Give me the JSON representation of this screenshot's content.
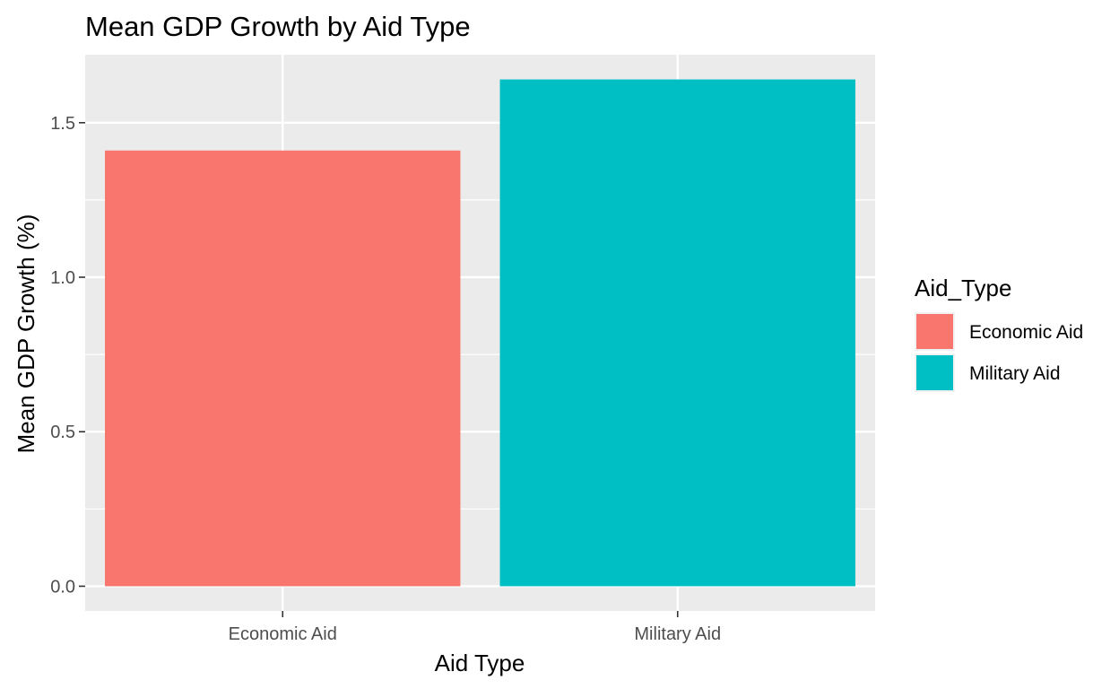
{
  "chart_data": {
    "type": "bar",
    "title": "Mean GDP Growth by Aid Type",
    "xlabel": "Aid Type",
    "ylabel": "Mean GDP Growth (%)",
    "categories": [
      "Economic Aid",
      "Military Aid"
    ],
    "values": [
      1.41,
      1.64
    ],
    "colors": [
      "#F8766D",
      "#00BFC4"
    ],
    "ylim": [
      -0.08,
      1.72
    ],
    "yticks": [
      0.0,
      0.5,
      1.0,
      1.5
    ],
    "ytick_labels": [
      "0.0",
      "0.5",
      "1.0",
      "1.5"
    ],
    "grid": true,
    "panel_background": "#EBEBEB",
    "grid_color": "#FFFFFF",
    "legend": {
      "title": "Aid_Type",
      "position": "right",
      "items": [
        {
          "label": "Economic Aid",
          "color": "#F8766D"
        },
        {
          "label": "Military Aid",
          "color": "#00BFC4"
        }
      ]
    }
  }
}
